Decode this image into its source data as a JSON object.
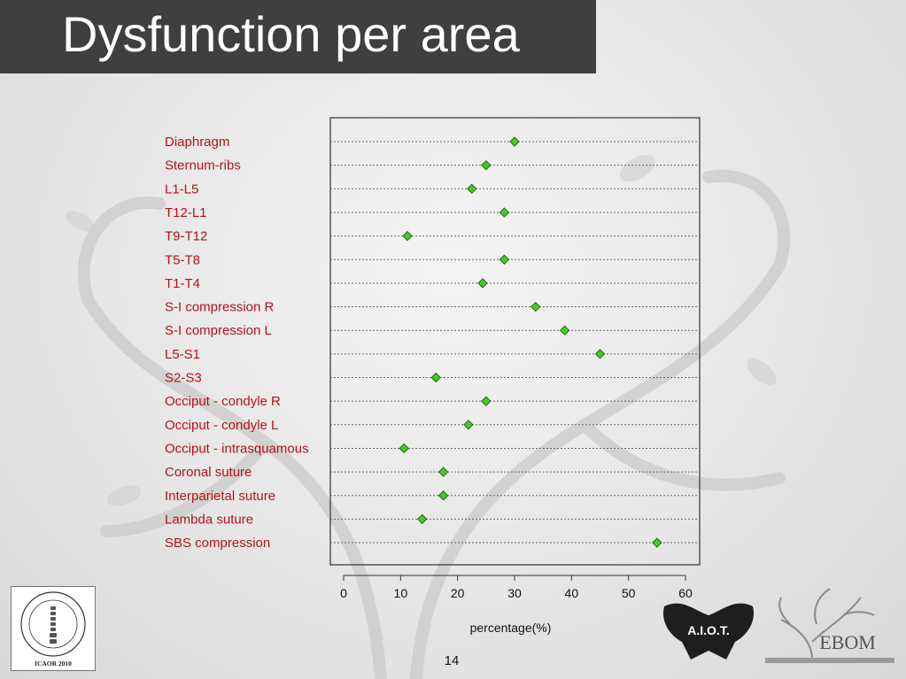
{
  "slide": {
    "title": "Dysfunction per area",
    "page_number": "14"
  },
  "logos": {
    "icaor_text": "ICAOR 2010",
    "icaor_ring": "INTERNATIONAL CONFERENCE on ADVANCES in OSTEOPATHIC RESEARCH",
    "aiot_text": "A.I.O.T.",
    "ebom_text": "EBOM"
  },
  "colors": {
    "label_red": "#b5121b",
    "marker_fill": "#3fcf1f",
    "marker_stroke": "#1f6a10",
    "title_bar": "#3f3f3f"
  },
  "chart_data": {
    "type": "scatter",
    "subtype": "dot-plot",
    "title": "",
    "xlabel": "percentage(%)",
    "ylabel": "",
    "xlim": [
      0,
      60
    ],
    "xticks": [
      0,
      10,
      20,
      30,
      40,
      50,
      60
    ],
    "grid": "horizontal dotted",
    "categories": [
      "Diaphragm",
      "Sternum-ribs",
      "L1-L5",
      "T12-L1",
      "T9-T12",
      "T5-T8",
      "T1-T4",
      "S-I compression R",
      "S-I compression L",
      "L5-S1",
      "S2-S3",
      "Occiput - condyle R",
      "Occiput - condyle L",
      "Occiput - intrasquamous",
      "Coronal suture",
      "Interparietal suture",
      "Lambda suture",
      "SBS compression"
    ],
    "values": [
      30,
      25,
      22.5,
      28.2,
      11.2,
      28.2,
      24.4,
      33.7,
      38.8,
      45,
      16.2,
      25,
      21.9,
      10.6,
      17.5,
      17.5,
      13.8,
      55
    ]
  }
}
